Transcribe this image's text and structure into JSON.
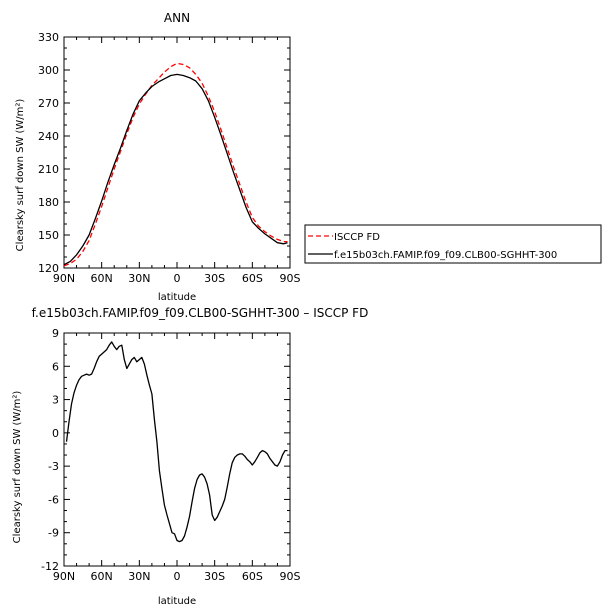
{
  "chart_data": [
    {
      "type": "line",
      "title": "ANN",
      "xlabel": "latitude",
      "ylabel": "Clearsky surf down SW (W/m²)",
      "xticks": [
        "90N",
        "60N",
        "30N",
        "0",
        "30S",
        "60S",
        "90S"
      ],
      "ylim": [
        120,
        330
      ],
      "yticks": [
        120,
        150,
        180,
        210,
        240,
        270,
        300,
        330
      ],
      "xlim": [
        90,
        -90
      ],
      "legend": {
        "placement": "right"
      },
      "series": [
        {
          "name": "ISCCP FD",
          "color": "#ff0000",
          "dash": "dashed",
          "x": [
            90,
            85,
            80,
            75,
            70,
            65,
            60,
            55,
            50,
            45,
            40,
            35,
            30,
            25,
            20,
            15,
            10,
            5,
            0,
            -5,
            -10,
            -15,
            -20,
            -25,
            -30,
            -35,
            -40,
            -45,
            -50,
            -55,
            -60,
            -65,
            -70,
            -75,
            -80,
            -85,
            -88
          ],
          "y": [
            122,
            124,
            128,
            135,
            145,
            160,
            176,
            193,
            210,
            226,
            242,
            257,
            269,
            278,
            286,
            292,
            298,
            303,
            306,
            305,
            302,
            296,
            288,
            276,
            262,
            246,
            229,
            212,
            196,
            180,
            166,
            158,
            153,
            149,
            146,
            144,
            144
          ]
        },
        {
          "name": "f.e15b03ch.FAMIP.f09_f09.CLB00-SGHHT-300",
          "color": "#000000",
          "dash": "solid",
          "x": [
            90,
            85,
            80,
            75,
            70,
            65,
            60,
            55,
            50,
            45,
            40,
            35,
            30,
            25,
            20,
            15,
            10,
            5,
            0,
            -5,
            -10,
            -15,
            -20,
            -25,
            -30,
            -35,
            -40,
            -45,
            -50,
            -55,
            -60,
            -65,
            -70,
            -75,
            -80,
            -85,
            -88
          ],
          "y": [
            123,
            126,
            132,
            140,
            150,
            165,
            181,
            198,
            214,
            229,
            245,
            260,
            272,
            279,
            285,
            289,
            292,
            295,
            296,
            295,
            293,
            290,
            283,
            272,
            257,
            241,
            224,
            207,
            191,
            175,
            162,
            156,
            151,
            147,
            143,
            142,
            143
          ]
        }
      ]
    },
    {
      "type": "line",
      "title": "f.e15b03ch.FAMIP.f09_f09.CLB00-SGHHT-300 – ISCCP FD",
      "xlabel": "latitude",
      "ylabel": "Clearsky surf down SW (W/m²)",
      "xticks": [
        "90N",
        "60N",
        "30N",
        "0",
        "30S",
        "60S",
        "90S"
      ],
      "ylim": [
        -12,
        9
      ],
      "yticks": [
        -12,
        -9,
        -6,
        -3,
        0,
        3,
        6,
        9
      ],
      "xlim": [
        90,
        -90
      ],
      "series": [
        {
          "name": "",
          "color": "#000000",
          "x": [
            88,
            86,
            84,
            82,
            80,
            78,
            76,
            74,
            72,
            70,
            68,
            66,
            64,
            62,
            60,
            58,
            56,
            54,
            52,
            50,
            48,
            46,
            44,
            42,
            40,
            38,
            36,
            34,
            32,
            30,
            28,
            26,
            24,
            22,
            20,
            18,
            16,
            14,
            12,
            10,
            8,
            6,
            4,
            2,
            0,
            -2,
            -4,
            -6,
            -8,
            -10,
            -12,
            -14,
            -16,
            -18,
            -20,
            -22,
            -24,
            -26,
            -28,
            -30,
            -32,
            -34,
            -36,
            -38,
            -40,
            -42,
            -44,
            -46,
            -48,
            -50,
            -52,
            -54,
            -56,
            -58,
            -60,
            -62,
            -64,
            -66,
            -68,
            -70,
            -72,
            -74,
            -76,
            -78,
            -80,
            -82,
            -84,
            -86,
            -88
          ],
          "y": [
            -0.8,
            1.0,
            2.6,
            3.6,
            4.3,
            4.8,
            5.1,
            5.2,
            5.3,
            5.2,
            5.3,
            5.8,
            6.4,
            6.9,
            7.1,
            7.3,
            7.5,
            7.9,
            8.2,
            7.8,
            7.5,
            7.8,
            7.9,
            6.6,
            5.8,
            6.2,
            6.6,
            6.8,
            6.4,
            6.6,
            6.8,
            6.2,
            5.2,
            4.3,
            3.5,
            1.2,
            -0.8,
            -3.4,
            -5.0,
            -6.5,
            -7.4,
            -8.2,
            -9.0,
            -9.1,
            -9.7,
            -9.8,
            -9.7,
            -9.3,
            -8.5,
            -7.5,
            -6.2,
            -5.0,
            -4.2,
            -3.8,
            -3.7,
            -4.0,
            -4.6,
            -5.6,
            -7.4,
            -7.9,
            -7.6,
            -7.1,
            -6.6,
            -6.0,
            -4.9,
            -3.7,
            -2.7,
            -2.2,
            -2.0,
            -1.9,
            -1.9,
            -2.1,
            -2.4,
            -2.6,
            -2.9,
            -2.6,
            -2.2,
            -1.8,
            -1.6,
            -1.7,
            -1.9,
            -2.3,
            -2.6,
            -2.9,
            -3.0,
            -2.6,
            -2.0,
            -1.6,
            -1.6
          ]
        }
      ]
    }
  ]
}
